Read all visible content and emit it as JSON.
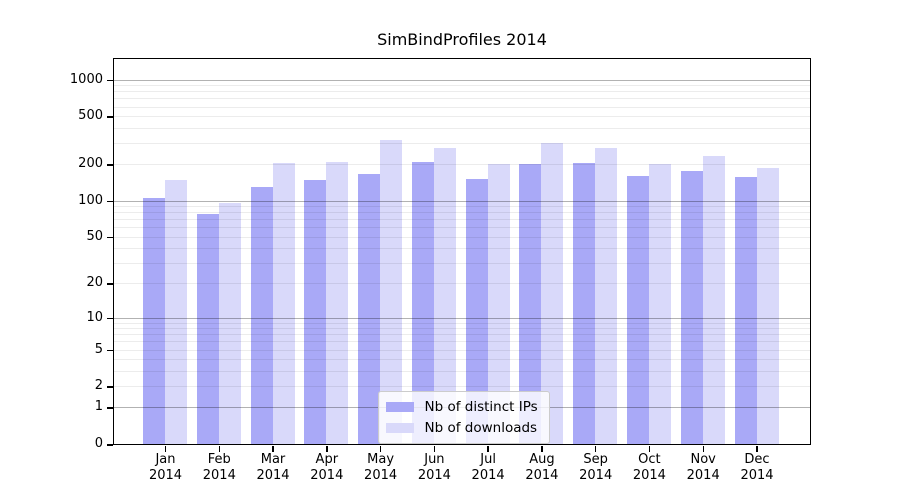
{
  "chart_data": {
    "type": "bar",
    "title": "SimBindProfiles 2014",
    "categories": [
      "Jan 2014",
      "Feb 2014",
      "Mar 2014",
      "Apr 2014",
      "May 2014",
      "Jun 2014",
      "Jul 2014",
      "Aug 2014",
      "Sep 2014",
      "Oct 2014",
      "Nov 2014",
      "Dec 2014"
    ],
    "series": [
      {
        "name": "Nb of distinct IPs",
        "color": "#a9a9f7",
        "values": [
          105,
          77,
          130,
          148,
          165,
          210,
          151,
          200,
          207,
          161,
          175,
          156
        ]
      },
      {
        "name": "Nb of downloads",
        "color": "#d9d9fa",
        "values": [
          148,
          95,
          205,
          209,
          320,
          273,
          201,
          300,
          273,
          201,
          233,
          186
        ]
      }
    ],
    "yscale": "log1p",
    "ylim": [
      0,
      1480
    ],
    "y_tick_labels": [
      0,
      1,
      2,
      5,
      10,
      20,
      50,
      100,
      200,
      500,
      1000
    ],
    "y_major_gridlines": [
      1,
      10,
      100,
      1000
    ],
    "y_minor_gridlines": [
      2,
      3,
      4,
      5,
      6,
      7,
      8,
      9,
      20,
      30,
      40,
      50,
      60,
      70,
      80,
      90,
      200,
      300,
      400,
      500,
      600,
      700,
      800,
      900
    ],
    "grid": "horizontal",
    "legend_position": "lower center",
    "xlabel": "",
    "ylabel": ""
  },
  "colors": {
    "bar_distinct_ips": "#a9a9f7",
    "bar_downloads": "#d9d9fa",
    "major_grid": "rgba(0,0,0,0.30)",
    "minor_grid": "rgba(0,0,0,0.075)",
    "axis": "#000000",
    "background": "#ffffff"
  }
}
